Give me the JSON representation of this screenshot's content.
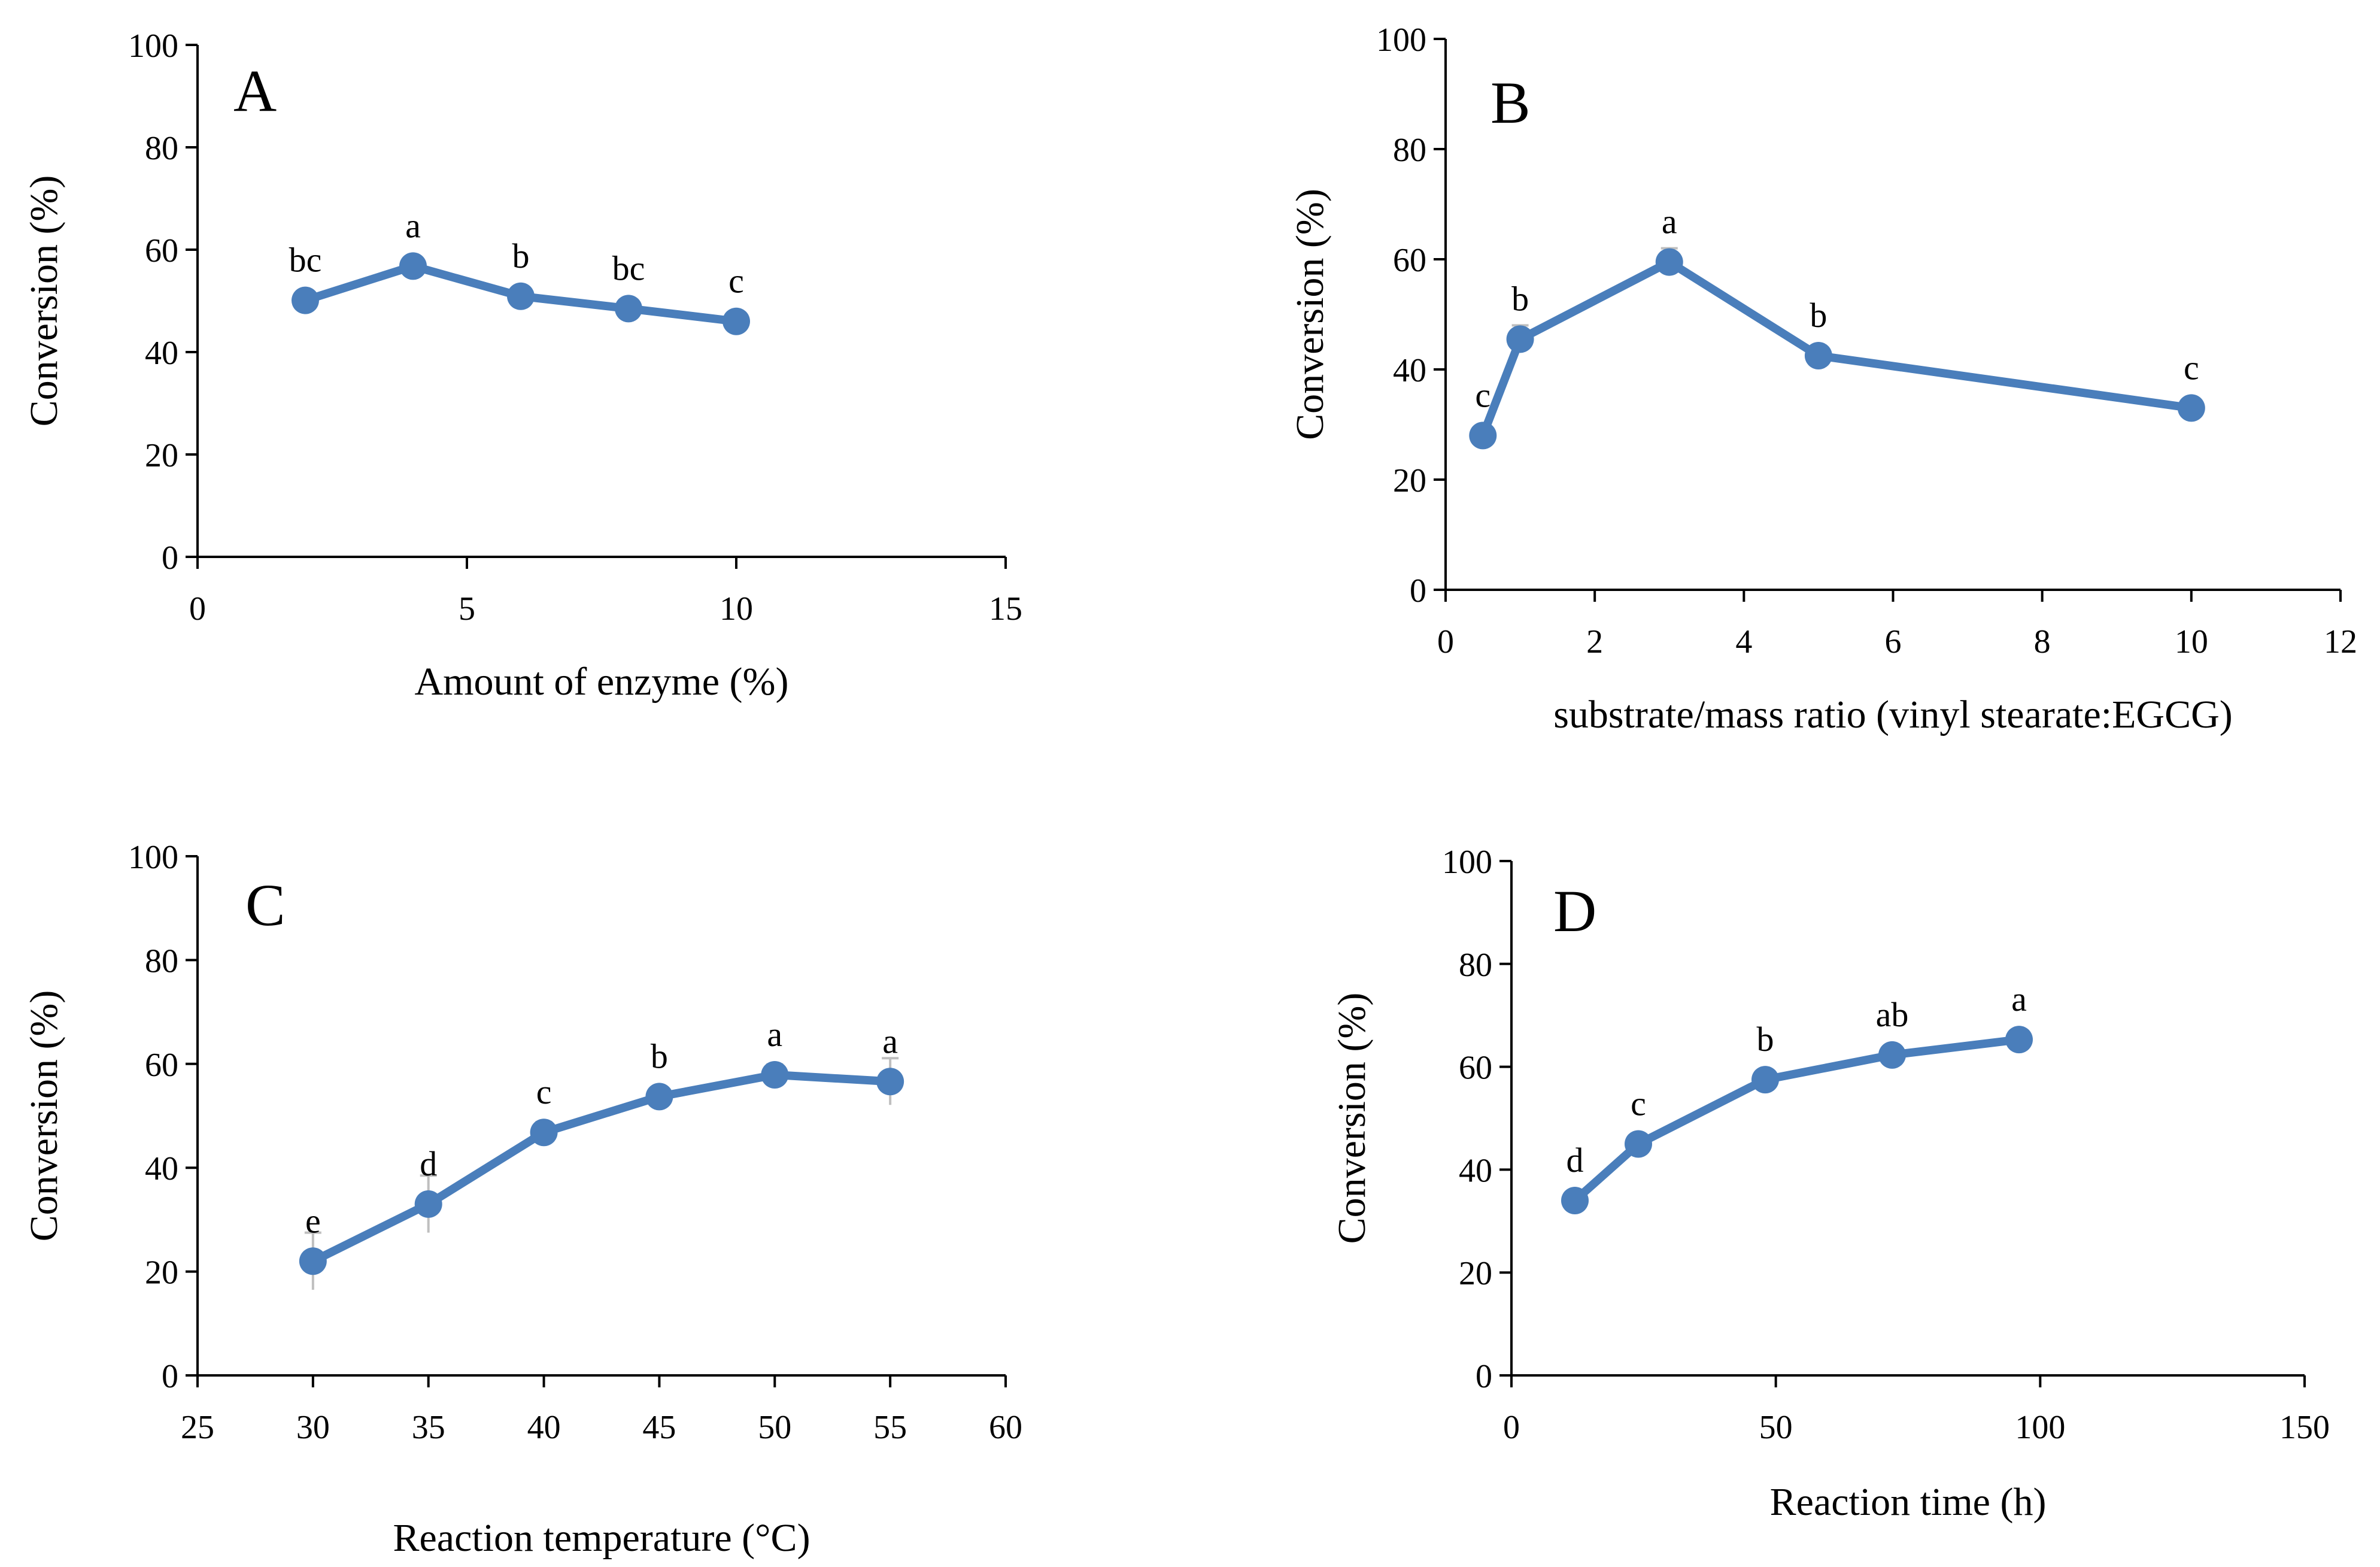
{
  "colors": {
    "series": "#4A7EBB",
    "error_bar": "#BFBFBF",
    "axis": "#000000"
  },
  "chart_data": [
    {
      "id": "A",
      "type": "line",
      "panel_label": "A",
      "xlabel": "Amount of enzyme (%)",
      "ylabel": "Conversion (%)",
      "xlim": [
        0,
        15
      ],
      "xticks": [
        0,
        5,
        10,
        15
      ],
      "ylim": [
        0,
        100
      ],
      "yticks": [
        0,
        20,
        40,
        60,
        80,
        100
      ],
      "series": [
        {
          "name": "Conversion",
          "x": [
            2,
            4,
            6,
            8,
            10
          ],
          "values": [
            50.1,
            56.8,
            50.9,
            48.5,
            46.0
          ],
          "errors": [
            1.0,
            1.5,
            1.0,
            1.0,
            1.0
          ],
          "labels": [
            "bc",
            "a",
            "b",
            "bc",
            "c"
          ]
        }
      ]
    },
    {
      "id": "B",
      "type": "line",
      "panel_label": "B",
      "xlabel": "substrate/mass ratio (vinyl stearate:EGCG)",
      "ylabel": "Conversion (%)",
      "xlim": [
        0,
        12
      ],
      "xticks": [
        0,
        2,
        4,
        6,
        8,
        10,
        12
      ],
      "ylim": [
        0,
        100
      ],
      "yticks": [
        0,
        20,
        40,
        60,
        80,
        100
      ],
      "series": [
        {
          "name": "Conversion",
          "x": [
            0.5,
            1,
            3,
            5,
            10
          ],
          "values": [
            28.0,
            45.5,
            59.5,
            42.5,
            33.0
          ],
          "errors": [
            1.0,
            2.5,
            2.5,
            1.5,
            1.0
          ],
          "labels": [
            "c",
            "b",
            "a",
            "b",
            "c"
          ]
        }
      ]
    },
    {
      "id": "C",
      "type": "line",
      "panel_label": "C",
      "xlabel": "Reaction temperature (°C)",
      "ylabel": "Conversion  (%)",
      "xlim": [
        25,
        60
      ],
      "xticks": [
        25,
        30,
        35,
        40,
        45,
        50,
        55,
        60
      ],
      "ylim": [
        0,
        100
      ],
      "yticks": [
        0,
        20,
        40,
        60,
        80,
        100
      ],
      "series": [
        {
          "name": "Conversion",
          "x": [
            30,
            35,
            40,
            45,
            50,
            55
          ],
          "values": [
            22.0,
            33.0,
            46.8,
            53.7,
            57.9,
            56.6
          ],
          "errors": [
            5.5,
            5.5,
            2.0,
            1.5,
            2.0,
            4.5
          ],
          "labels": [
            "e",
            "d",
            "c",
            "b",
            "a",
            "a"
          ]
        }
      ]
    },
    {
      "id": "D",
      "type": "line",
      "panel_label": "D",
      "xlabel": "Reaction time (h)",
      "ylabel": "Conversion  (%)",
      "xlim": [
        0,
        150
      ],
      "xticks": [
        0,
        50,
        100,
        150
      ],
      "ylim": [
        0,
        100
      ],
      "yticks": [
        0,
        20,
        40,
        60,
        80,
        100
      ],
      "series": [
        {
          "name": "Conversion",
          "x": [
            12,
            24,
            48,
            72,
            96
          ],
          "values": [
            34.0,
            45.0,
            57.5,
            62.3,
            65.3
          ],
          "errors": [
            1.0,
            1.5,
            1.0,
            1.0,
            1.0
          ],
          "labels": [
            "d",
            "c",
            "b",
            "ab",
            "a"
          ]
        }
      ]
    }
  ]
}
